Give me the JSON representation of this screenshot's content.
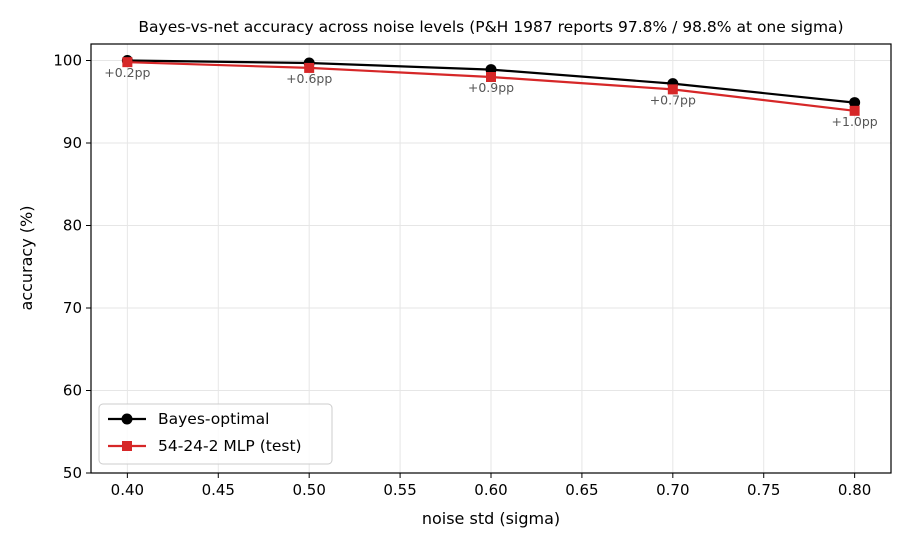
{
  "chart_data": {
    "type": "line",
    "title": "Bayes-vs-net accuracy across noise levels  (P&H 1987 reports 97.8% / 98.8% at one sigma)",
    "xlabel": "noise std (sigma)",
    "ylabel": "accuracy (%)",
    "xlim": [
      0.38,
      0.82
    ],
    "ylim": [
      50,
      102
    ],
    "xticks": [
      "0.40",
      "0.45",
      "0.50",
      "0.55",
      "0.60",
      "0.65",
      "0.70",
      "0.75",
      "0.80"
    ],
    "yticks": [
      "50",
      "60",
      "70",
      "80",
      "90",
      "100"
    ],
    "grid": true,
    "legend_position": "lower-left",
    "x": [
      0.4,
      0.5,
      0.6,
      0.7,
      0.8
    ],
    "series": [
      {
        "name": "Bayes-optimal",
        "values": [
          100.0,
          99.7,
          98.9,
          97.2,
          94.9
        ],
        "color": "#000000",
        "marker": "circle"
      },
      {
        "name": "54-24-2 MLP (test)",
        "values": [
          99.8,
          99.1,
          98.0,
          96.5,
          93.9
        ],
        "color": "#d62728",
        "marker": "square"
      }
    ],
    "annotations": [
      "+0.2pp",
      "+0.6pp",
      "+0.9pp",
      "+0.7pp",
      "+1.0pp"
    ],
    "annotation_color": "#555555"
  }
}
